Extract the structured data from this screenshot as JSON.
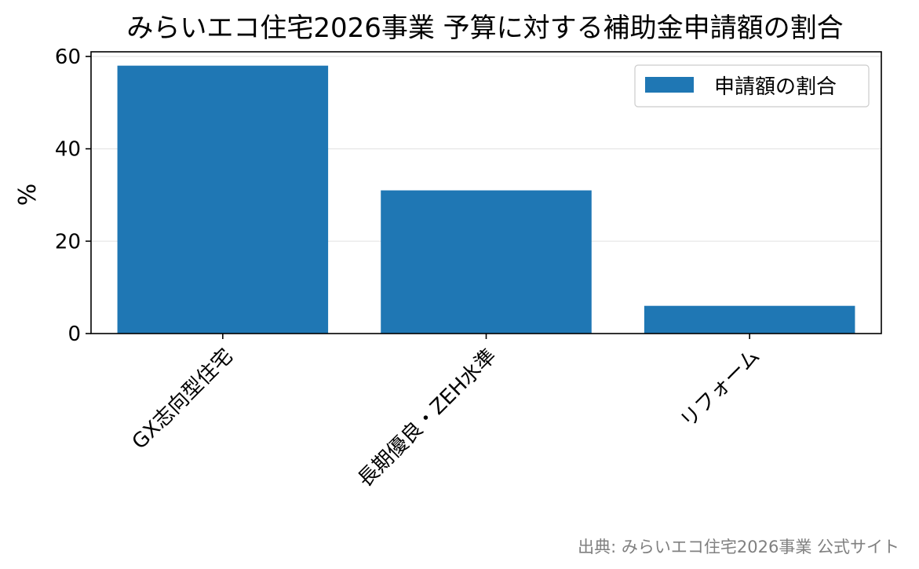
{
  "chart_data": {
    "type": "bar",
    "title": "みらいエコ住宅2026事業 予算に対する補助金申請額の割合",
    "xlabel": "",
    "ylabel": "%",
    "categories": [
      "GX志向型住宅",
      "長期優良・ZEH水準",
      "リフォーム"
    ],
    "series": [
      {
        "name": "申請額の割合",
        "values": [
          58,
          31,
          6
        ],
        "color": "#1f77b4"
      }
    ],
    "ylim": [
      0,
      61
    ],
    "yticks": [
      0,
      20,
      40,
      60
    ],
    "grid": "horizontal",
    "legend": "top-right",
    "source": "出典: みらいエコ住宅2026事業 公式サイト"
  }
}
